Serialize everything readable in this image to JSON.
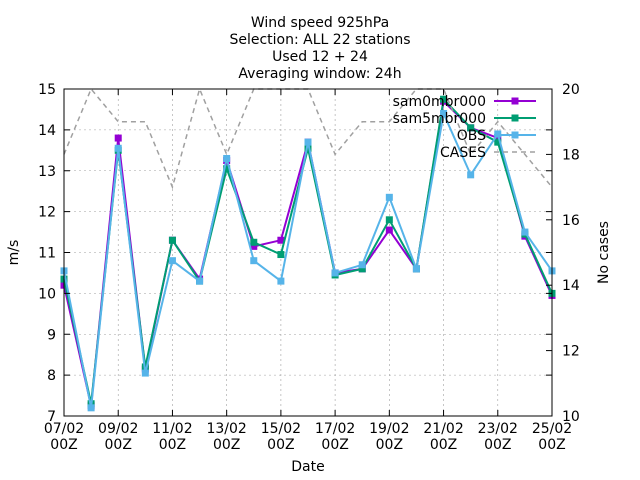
{
  "chart_data": {
    "type": "line",
    "title_lines": [
      "Wind speed 925hPa",
      "Selection: ALL      22 stations",
      "Used 12 + 24",
      "Averaging window: 24h"
    ],
    "xlabel": "Date",
    "ylabel": "m/s",
    "y2label": "No cases",
    "ylim": [
      7,
      15
    ],
    "y2lim": [
      10,
      20
    ],
    "yticks": [
      7,
      8,
      9,
      10,
      11,
      12,
      13,
      14,
      15
    ],
    "y2ticks": [
      10,
      12,
      14,
      16,
      18,
      20
    ],
    "x_ticks": [
      {
        "i": 0,
        "l1": "07/02",
        "l2": "00Z"
      },
      {
        "i": 2,
        "l1": "09/02",
        "l2": "00Z"
      },
      {
        "i": 4,
        "l1": "11/02",
        "l2": "00Z"
      },
      {
        "i": 6,
        "l1": "13/02",
        "l2": "00Z"
      },
      {
        "i": 8,
        "l1": "15/02",
        "l2": "00Z"
      },
      {
        "i": 10,
        "l1": "17/02",
        "l2": "00Z"
      },
      {
        "i": 12,
        "l1": "19/02",
        "l2": "00Z"
      },
      {
        "i": 14,
        "l1": "21/02",
        "l2": "00Z"
      },
      {
        "i": 16,
        "l1": "23/02",
        "l2": "00Z"
      },
      {
        "i": 18,
        "l1": "25/02",
        "l2": "00Z"
      }
    ],
    "x_dates": [
      "07/02 00Z",
      "08/02 00Z",
      "09/02 00Z",
      "10/02 00Z",
      "11/02 00Z",
      "12/02 00Z",
      "13/02 00Z",
      "14/02 00Z",
      "15/02 00Z",
      "16/02 00Z",
      "17/02 00Z",
      "18/02 00Z",
      "19/02 00Z",
      "20/02 00Z",
      "21/02 00Z",
      "22/02 00Z",
      "23/02 00Z",
      "24/02 00Z",
      "25/02 00Z"
    ],
    "grid": true,
    "legend_position": "top-right",
    "series": [
      {
        "name": "sam0mbr000",
        "color": "#9400d3",
        "axis": "y",
        "marker": "square",
        "values": [
          10.2,
          7.25,
          13.8,
          8.15,
          11.3,
          10.35,
          13.25,
          11.15,
          11.3,
          13.7,
          10.5,
          10.6,
          11.55,
          10.6,
          14.7,
          14.05,
          13.8,
          11.4,
          9.95
        ]
      },
      {
        "name": "sam5mbr000",
        "color": "#009e73",
        "axis": "y",
        "marker": "square",
        "values": [
          10.35,
          7.3,
          13.5,
          8.2,
          11.3,
          10.3,
          13.05,
          11.25,
          10.95,
          13.55,
          10.45,
          10.6,
          11.8,
          10.6,
          14.75,
          14.05,
          13.7,
          11.45,
          10.0
        ]
      },
      {
        "name": "OBS",
        "color": "#56b4e9",
        "axis": "y",
        "marker": "square",
        "values": [
          10.55,
          7.2,
          13.55,
          8.05,
          10.8,
          10.3,
          13.3,
          10.8,
          10.3,
          13.7,
          10.5,
          10.7,
          12.35,
          10.6,
          14.4,
          12.9,
          13.9,
          11.5,
          10.55
        ]
      },
      {
        "name": "CASES",
        "color": "#a0a0a0",
        "axis": "y2",
        "dashed": true,
        "values": [
          18,
          20,
          19,
          19,
          17,
          20,
          18,
          20,
          20,
          20,
          18,
          19,
          19,
          20,
          20,
          18,
          19,
          18,
          17
        ]
      }
    ]
  }
}
